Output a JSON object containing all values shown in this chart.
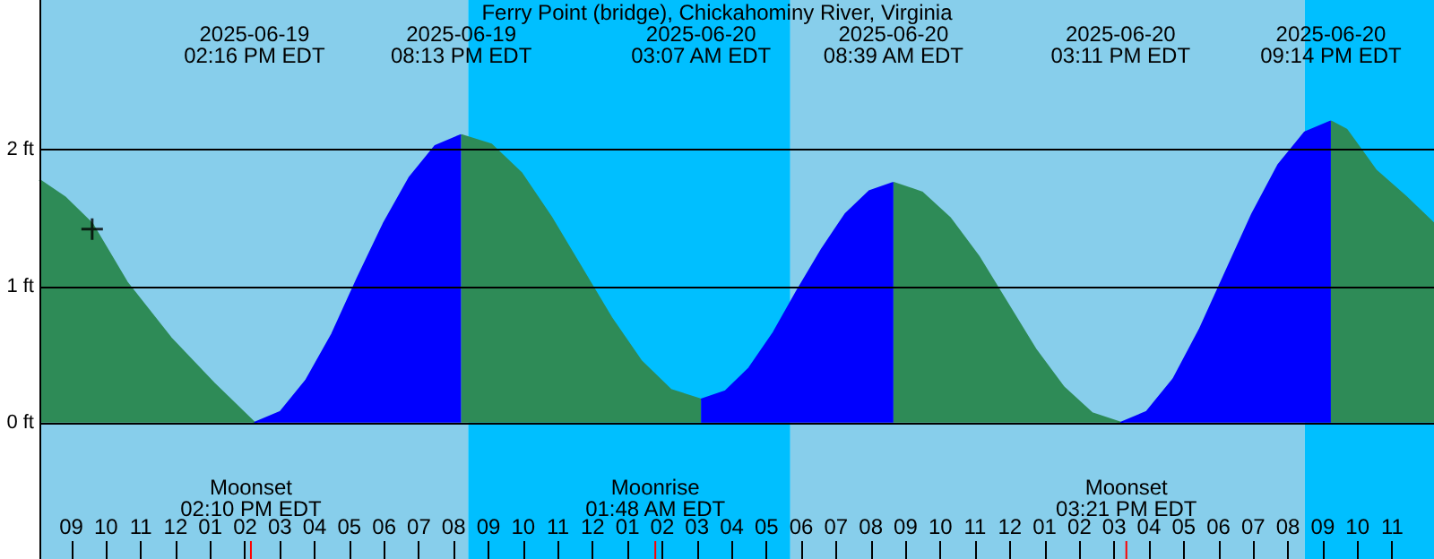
{
  "chart_data": {
    "type": "area",
    "title": "Ferry Point (bridge), Chickahominy River, Virginia",
    "series": [
      {
        "color": "#2e8b57",
        "x": [
          "2025-06-19T08:05",
          "2025-06-19T08:50",
          "2025-06-19T09:36",
          "2025-06-19T10:36",
          "2025-06-19T11:52",
          "2025-06-19T13:06",
          "2025-06-19T14:16"
        ],
        "values": [
          1.78,
          1.65,
          1.46,
          1.03,
          0.62,
          0.29,
          0
        ]
      },
      {
        "color": "#0000ff",
        "x": [
          "2025-06-19T14:16",
          "2025-06-19T15:01",
          "2025-06-19T15:45",
          "2025-06-19T16:30",
          "2025-06-19T17:14",
          "2025-06-19T17:59",
          "2025-06-19T18:44",
          "2025-06-19T19:28",
          "2025-06-19T20:13"
        ],
        "values": [
          0,
          0.08,
          0.31,
          0.65,
          1.06,
          1.46,
          1.8,
          2.03,
          2.11
        ]
      },
      {
        "color": "#2e8b57",
        "x": [
          "2025-06-19T20:13",
          "2025-06-19T21:05",
          "2025-06-19T21:57",
          "2025-06-19T22:48",
          "2025-06-19T23:40",
          "2025-06-20T00:32",
          "2025-06-20T01:24",
          "2025-06-20T02:15",
          "2025-06-20T03:07"
        ],
        "values": [
          2.11,
          2.04,
          1.83,
          1.51,
          1.14,
          0.77,
          0.45,
          0.24,
          0.17
        ]
      },
      {
        "color": "#0000ff",
        "x": [
          "2025-06-20T03:07",
          "2025-06-20T03:49",
          "2025-06-20T04:30",
          "2025-06-20T05:12",
          "2025-06-20T05:53",
          "2025-06-20T06:35",
          "2025-06-20T07:16",
          "2025-06-20T07:58",
          "2025-06-20T08:39"
        ],
        "values": [
          0.17,
          0.23,
          0.4,
          0.66,
          0.97,
          1.27,
          1.53,
          1.7,
          1.76
        ]
      },
      {
        "color": "#2e8b57",
        "x": [
          "2025-06-20T08:39",
          "2025-06-20T09:28",
          "2025-06-20T10:17",
          "2025-06-20T11:06",
          "2025-06-20T11:55",
          "2025-06-20T12:44",
          "2025-06-20T13:33",
          "2025-06-20T14:22",
          "2025-06-20T15:11"
        ],
        "values": [
          1.76,
          1.69,
          1.5,
          1.22,
          0.88,
          0.54,
          0.26,
          0.07,
          0
        ]
      },
      {
        "color": "#0000ff",
        "x": [
          "2025-06-20T15:11",
          "2025-06-20T15:56",
          "2025-06-20T16:42",
          "2025-06-20T17:27",
          "2025-06-20T18:13",
          "2025-06-20T18:58",
          "2025-06-20T19:43",
          "2025-06-20T20:29",
          "2025-06-20T21:14"
        ],
        "values": [
          0,
          0.08,
          0.32,
          0.68,
          1.11,
          1.53,
          1.89,
          2.13,
          2.21
        ]
      },
      {
        "color": "#2e8b57",
        "x": [
          "2025-06-20T21:14",
          "2025-06-20T21:41",
          "2025-06-20T22:32",
          "2025-06-20T23:23",
          "2025-06-21T00:12"
        ],
        "values": [
          2.21,
          2.15,
          1.85,
          1.66,
          1.46
        ]
      },
      {
        "type": "scatter",
        "marker": "cross",
        "color": "#000000",
        "x": [
          "2025-06-19T09:36"
        ],
        "values": [
          1.42
        ]
      }
    ],
    "xlim": [
      "2025-06-19T08:05",
      "2025-06-21T00:12"
    ],
    "ylim": [
      -1,
      3.1
    ],
    "xticks": [
      {
        "value": "2025-06-19T09:00",
        "label": "09"
      },
      {
        "value": "2025-06-19T10:00",
        "label": "10"
      },
      {
        "value": "2025-06-19T11:00",
        "label": "11"
      },
      {
        "value": "2025-06-19T12:00",
        "label": "12"
      },
      {
        "value": "2025-06-19T13:00",
        "label": "01"
      },
      {
        "value": "2025-06-19T14:00",
        "label": "02"
      },
      {
        "value": "2025-06-19T15:00",
        "label": "03"
      },
      {
        "value": "2025-06-19T16:00",
        "label": "04"
      },
      {
        "value": "2025-06-19T17:00",
        "label": "05"
      },
      {
        "value": "2025-06-19T18:00",
        "label": "06"
      },
      {
        "value": "2025-06-19T19:00",
        "label": "07"
      },
      {
        "value": "2025-06-19T20:00",
        "label": "08"
      },
      {
        "value": "2025-06-19T21:00",
        "label": "09"
      },
      {
        "value": "2025-06-19T22:00",
        "label": "10"
      },
      {
        "value": "2025-06-19T23:00",
        "label": "11"
      },
      {
        "value": "2025-06-20T00:00",
        "label": "12"
      },
      {
        "value": "2025-06-20T01:00",
        "label": "01"
      },
      {
        "value": "2025-06-20T02:00",
        "label": "02"
      },
      {
        "value": "2025-06-20T03:00",
        "label": "03"
      },
      {
        "value": "2025-06-20T04:00",
        "label": "04"
      },
      {
        "value": "2025-06-20T05:00",
        "label": "05"
      },
      {
        "value": "2025-06-20T06:00",
        "label": "06"
      },
      {
        "value": "2025-06-20T07:00",
        "label": "07"
      },
      {
        "value": "2025-06-20T08:00",
        "label": "08"
      },
      {
        "value": "2025-06-20T09:00",
        "label": "09"
      },
      {
        "value": "2025-06-20T10:00",
        "label": "10"
      },
      {
        "value": "2025-06-20T11:00",
        "label": "11"
      },
      {
        "value": "2025-06-20T12:00",
        "label": "12"
      },
      {
        "value": "2025-06-20T13:00",
        "label": "01"
      },
      {
        "value": "2025-06-20T14:00",
        "label": "02"
      },
      {
        "value": "2025-06-20T15:00",
        "label": "03"
      },
      {
        "value": "2025-06-20T16:00",
        "label": "04"
      },
      {
        "value": "2025-06-20T17:00",
        "label": "05"
      },
      {
        "value": "2025-06-20T18:00",
        "label": "06"
      },
      {
        "value": "2025-06-20T19:00",
        "label": "07"
      },
      {
        "value": "2025-06-20T20:00",
        "label": "08"
      },
      {
        "value": "2025-06-20T21:00",
        "label": "09"
      },
      {
        "value": "2025-06-20T22:00",
        "label": "10"
      },
      {
        "value": "2025-06-20T23:00",
        "label": "11"
      }
    ],
    "yticks": [
      {
        "value": 0,
        "label": "0 ft"
      },
      {
        "value": 1,
        "label": "1 ft"
      },
      {
        "value": 2,
        "label": "2 ft"
      }
    ],
    "grid": "y",
    "bands": [
      {
        "axis": "x",
        "from": "2025-06-19T08:05",
        "to": "2025-06-19T20:25",
        "color": "#87ceeb"
      },
      {
        "axis": "x",
        "from": "2025-06-19T20:25",
        "to": "2025-06-20T05:41",
        "color": "#00bfff"
      },
      {
        "axis": "x",
        "from": "2025-06-20T05:41",
        "to": "2025-06-20T20:29",
        "color": "#87ceeb"
      },
      {
        "axis": "x",
        "from": "2025-06-20T20:29",
        "to": "2025-06-21T00:12",
        "color": "#00bfff"
      }
    ],
    "ref_lines": [
      {
        "axis": "x",
        "value": "2025-06-19T14:10",
        "label": "Moonset\n02:10 PM EDT",
        "color": "#ff0000"
      },
      {
        "axis": "x",
        "value": "2025-06-20T01:48",
        "label": "Moonrise\n01:48 AM EDT",
        "color": "#ff0000"
      },
      {
        "axis": "x",
        "value": "2025-06-20T15:21",
        "label": "Moonset\n03:21 PM EDT",
        "color": "#ff0000"
      }
    ],
    "annotations": [
      "2025-06-19\n02:16 PM EDT",
      "2025-06-19\n08:13 PM EDT",
      "2025-06-20\n03:07 AM EDT",
      "2025-06-20\n08:39 AM EDT",
      "2025-06-20\n03:11 PM EDT",
      "2025-06-20\n09:14 PM EDT"
    ]
  }
}
